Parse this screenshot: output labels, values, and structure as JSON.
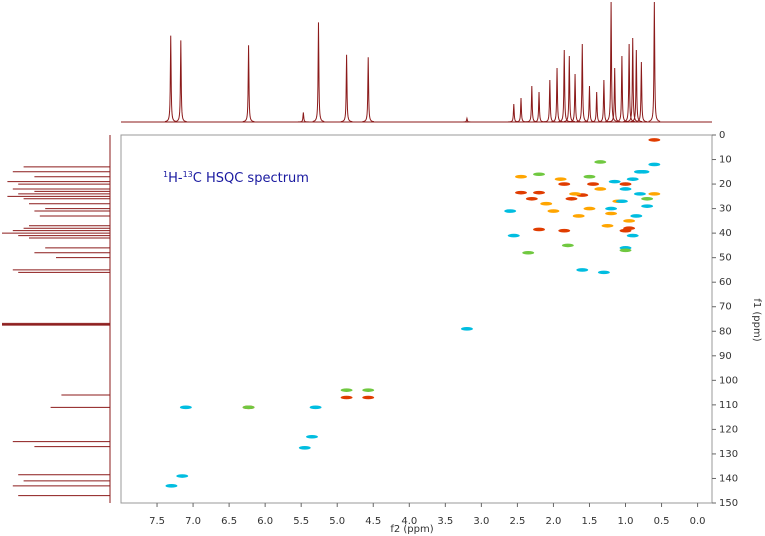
{
  "chart_data": [
    {
      "type": "scatter",
      "annotation": [
        "1",
        "H-",
        "13",
        "C HSQC spectrum"
      ],
      "xlabel": "f2 (ppm)",
      "ylabel": "f1 (ppm)",
      "xlim": [
        8.0,
        -0.2
      ],
      "ylim": [
        0,
        150
      ],
      "xticks": [
        7.5,
        {
          "value": 7,
          "label": "7.0"
        },
        6.5,
        {
          "value": 6,
          "label": "6.0"
        },
        5.5,
        {
          "value": 5,
          "label": "5.0"
        },
        4.5,
        {
          "value": 4,
          "label": "4.0"
        },
        3.5,
        {
          "value": 3,
          "label": "3.0"
        },
        2.5,
        {
          "value": 2,
          "label": "2.0"
        },
        1.5,
        {
          "value": 1,
          "label": "1.0"
        },
        0.5,
        {
          "value": 0,
          "label": "0.0"
        }
      ],
      "yticks": [
        0,
        10,
        20,
        30,
        40,
        50,
        60,
        70,
        80,
        90,
        100,
        110,
        120,
        130,
        140,
        150
      ],
      "series": [
        {
          "color": "#e03c00",
          "x": [
            4.87,
            4.57,
            6.23,
            2.45,
            2.2,
            1.85,
            1.75,
            1.45,
            1.0,
            2.2,
            1.85,
            1.0,
            0.95,
            1.6,
            0.6,
            2.3
          ],
          "values": [
            107,
            107,
            111,
            23.5,
            23.5,
            20,
            26,
            20,
            20,
            38.5,
            39,
            39,
            38,
            24.5,
            2,
            26
          ]
        },
        {
          "color": "#ffa500",
          "x": [
            2.0,
            1.7,
            1.5,
            1.2,
            1.1,
            1.65,
            2.1,
            1.35,
            0.6,
            2.45,
            1.9,
            0.95,
            1.25
          ],
          "values": [
            31,
            24,
            30,
            32,
            27,
            33,
            28,
            22,
            24,
            17,
            18,
            35,
            37
          ]
        },
        {
          "color": "#00bde0",
          "x": [
            3.2,
            5.45,
            5.35,
            7.3,
            7.15,
            1.3,
            1.6,
            1.0,
            0.6,
            0.8,
            0.9,
            1.05,
            1.2,
            0.85,
            0.75,
            2.55,
            1.0,
            0.8,
            7.1,
            5.3,
            1.15,
            0.7,
            2.6,
            0.9
          ],
          "values": [
            79,
            127.5,
            123,
            143,
            139,
            56,
            55,
            46,
            12,
            15,
            18,
            27,
            30,
            33,
            15,
            41,
            22,
            24,
            111,
            111,
            19,
            29,
            31,
            41
          ]
        },
        {
          "color": "#70c840",
          "x": [
            1.5,
            2.2,
            1.0,
            0.7,
            4.87,
            4.57,
            6.23,
            1.8,
            1.35,
            2.35
          ],
          "values": [
            17,
            16,
            47,
            26,
            104,
            104,
            111,
            45,
            11,
            48
          ]
        }
      ]
    },
    {
      "type": "spectrum",
      "orientation": "top",
      "color": "#8b1a1a",
      "xlim": [
        8.0,
        -0.2
      ],
      "ylim": [
        0,
        100
      ],
      "x": [
        7.31,
        7.17,
        6.23,
        5.47,
        5.26,
        4.87,
        4.57,
        3.2,
        2.55,
        2.45,
        2.3,
        2.2,
        2.05,
        1.95,
        1.85,
        1.78,
        1.7,
        1.6,
        1.5,
        1.4,
        1.3,
        1.2,
        1.15,
        1.05,
        0.95,
        0.9,
        0.85,
        0.78,
        0.6
      ],
      "values": [
        72,
        68,
        64,
        8,
        83,
        56,
        54,
        3,
        15,
        20,
        30,
        25,
        35,
        45,
        60,
        55,
        40,
        65,
        30,
        25,
        35,
        100,
        45,
        55,
        65,
        70,
        60,
        50,
        100
      ]
    },
    {
      "type": "spectrum",
      "orientation": "left",
      "color": "#8b1a1a",
      "xlim": [
        0,
        150
      ],
      "ylim": [
        0,
        100
      ],
      "x": [
        13,
        15,
        17,
        19,
        20,
        22,
        23,
        24,
        25,
        26,
        28,
        30,
        31,
        33,
        37,
        38,
        39,
        40,
        41,
        42,
        46,
        48,
        50,
        55,
        56,
        76.8,
        77.2,
        77.5,
        106,
        111,
        125,
        127,
        138.5,
        141,
        143,
        147
      ],
      "values": [
        80,
        90,
        70,
        95,
        85,
        90,
        70,
        85,
        95,
        80,
        75,
        60,
        70,
        65,
        75,
        80,
        90,
        100,
        85,
        75,
        60,
        70,
        50,
        90,
        85,
        100,
        100,
        100,
        45,
        55,
        90,
        70,
        85,
        80,
        90,
        85
      ]
    }
  ]
}
